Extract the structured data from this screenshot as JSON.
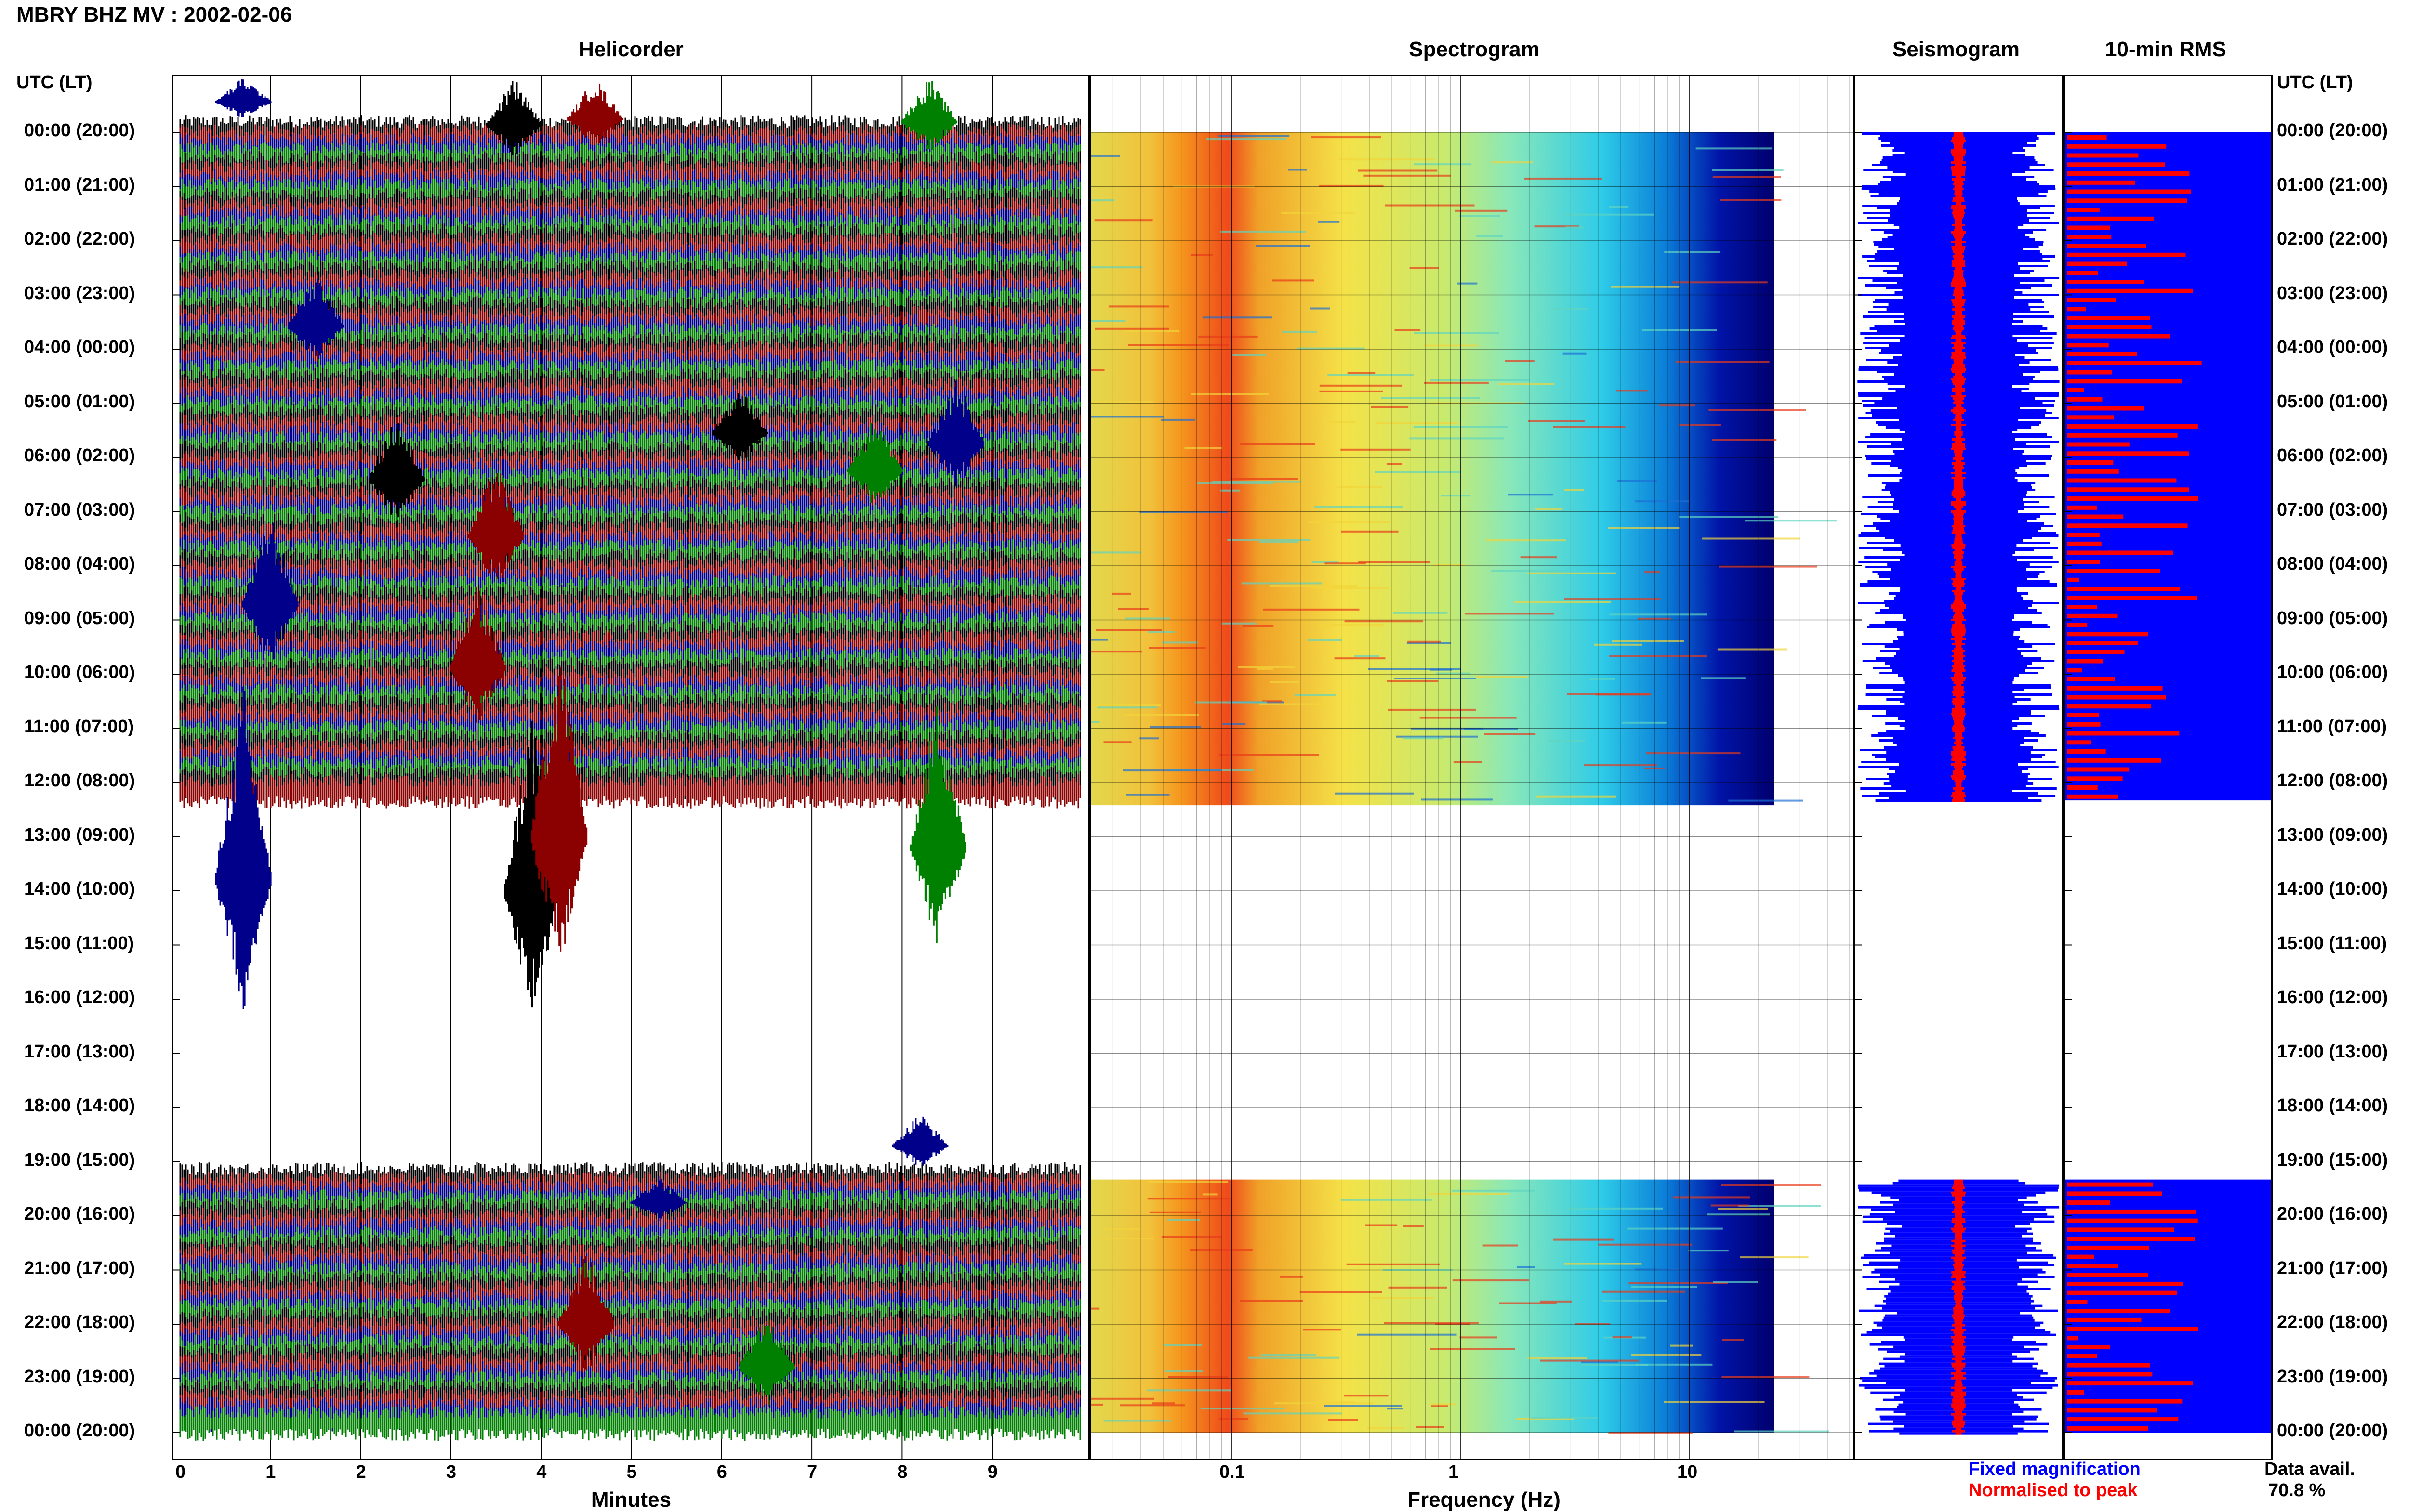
{
  "page_title": "MBRY BHZ MV : 2002-02-06",
  "panels": {
    "helicorder": "Helicorder",
    "spectrogram": "Spectrogram",
    "seismogram": "Seismogram",
    "rms": "10-min RMS"
  },
  "time_axis_header": "UTC (LT)",
  "time_labels": [
    "00:00 (20:00)",
    "01:00 (21:00)",
    "02:00 (22:00)",
    "03:00 (23:00)",
    "04:00 (00:00)",
    "05:00 (01:00)",
    "06:00 (02:00)",
    "07:00 (03:00)",
    "08:00 (04:00)",
    "09:00 (05:00)",
    "10:00 (06:00)",
    "11:00 (07:00)",
    "12:00 (08:00)",
    "13:00 (09:00)",
    "14:00 (10:00)",
    "15:00 (11:00)",
    "16:00 (12:00)",
    "17:00 (13:00)",
    "18:00 (14:00)",
    "19:00 (15:00)",
    "20:00 (16:00)",
    "21:00 (17:00)",
    "22:00 (18:00)",
    "23:00 (19:00)",
    "00:00 (20:00)"
  ],
  "minutes_ticks": [
    "0",
    "1",
    "2",
    "3",
    "4",
    "5",
    "6",
    "7",
    "8",
    "9"
  ],
  "minutes_label": "Minutes",
  "freq_ticks": [
    "0.1",
    "1",
    "10"
  ],
  "freq_label": "Frequency (Hz)",
  "legend": {
    "fixed": "Fixed magnification",
    "normalised": "Normalised to peak",
    "fixed_color": "#0000ff",
    "normalised_color": "#ff0000"
  },
  "data_avail": {
    "label": "Data avail.",
    "value": "70.8 %"
  },
  "trace_colors": [
    "#000000",
    "#8b0000",
    "#00008b",
    "#008000"
  ],
  "data_gap_utc": [
    "12:20",
    "19:20"
  ]
}
